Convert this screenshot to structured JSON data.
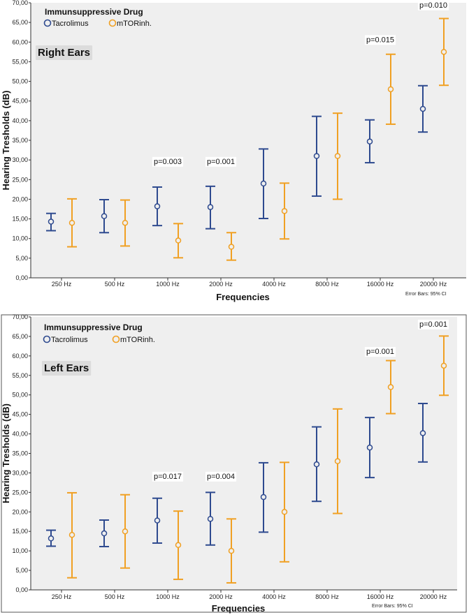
{
  "colors": {
    "tacrolimus": "#2e4a8f",
    "mtor": "#f0a023",
    "plot_bg": "#efefef"
  },
  "chart_data": [
    {
      "type": "errorbar",
      "panel_label": "Right Ears",
      "legend_title": "Immunsuppressive Drug",
      "xlabel": "Frequencies",
      "ylabel": "Hearing Tresholds (dB)",
      "ylim": [
        0,
        70
      ],
      "yticks": [
        "0,00",
        "5,00",
        "10,00",
        "15,00",
        "20,00",
        "25,00",
        "30,00",
        "35,00",
        "40,00",
        "45,00",
        "50,00",
        "55,00",
        "60,00",
        "65,00",
        "70,00"
      ],
      "grid": false,
      "legend_position": "top-left",
      "note": "Error Bars: 95% CI",
      "categories": [
        "250 Hz",
        "500 Hz",
        "1000 Hz",
        "2000 Hz",
        "4000 Hz",
        "8000 Hz",
        "16000 Hz",
        "20000 Hz"
      ],
      "series": [
        {
          "name": "Tacrolimus",
          "mean": [
            14.3,
            15.7,
            18.2,
            18.0,
            24.0,
            31.0,
            34.7,
            43.0
          ],
          "lower": [
            12.0,
            11.5,
            13.3,
            12.5,
            15.1,
            20.8,
            29.3,
            37.1
          ],
          "upper": [
            16.4,
            19.9,
            23.1,
            23.3,
            32.8,
            41.1,
            40.2,
            48.9
          ]
        },
        {
          "name": "mTORinh.",
          "mean": [
            14.0,
            14.0,
            9.5,
            7.9,
            17.0,
            31.0,
            48.0,
            57.5
          ],
          "lower": [
            7.9,
            8.1,
            5.1,
            4.5,
            9.9,
            20.0,
            39.1,
            49.0
          ],
          "upper": [
            20.1,
            19.8,
            13.8,
            11.5,
            24.1,
            41.9,
            56.9,
            66.0
          ]
        }
      ],
      "annotations": [
        {
          "category": "1000 Hz",
          "text": "p=0.003",
          "y": 29.0
        },
        {
          "category": "2000 Hz",
          "text": "p=0.001",
          "y": 29.0
        },
        {
          "category": "16000 Hz",
          "text": "p=0.015",
          "y": 60.0
        },
        {
          "category": "20000 Hz",
          "text": "p=0.010",
          "y": 68.8
        }
      ]
    },
    {
      "type": "errorbar",
      "panel_label": "Left Ears",
      "legend_title": "Immunsuppressive Drug",
      "xlabel": "Frequencies",
      "ylabel": "Hearing Tresholds (dB)",
      "ylim": [
        0,
        70
      ],
      "yticks": [
        "0,00",
        "5,00",
        "10,00",
        "15,00",
        "20,00",
        "25,00",
        "30,00",
        "35,00",
        "40,00",
        "45,00",
        "50,00",
        "55,00",
        "60,00",
        "65,00",
        "70,00"
      ],
      "grid": false,
      "legend_position": "top-left",
      "note": "Error Bars: 95% CI",
      "categories": [
        "250 Hz",
        "500 Hz",
        "1000 Hz",
        "2000 Hz",
        "4000 Hz",
        "8000 Hz",
        "16000 Hz",
        "20000 Hz"
      ],
      "series": [
        {
          "name": "Tacrolimus",
          "mean": [
            13.2,
            14.5,
            17.8,
            18.2,
            23.8,
            32.2,
            36.5,
            40.2
          ],
          "lower": [
            11.2,
            11.1,
            12.0,
            11.5,
            14.8,
            22.7,
            28.8,
            32.8
          ],
          "upper": [
            15.3,
            17.9,
            23.5,
            25.0,
            32.6,
            41.8,
            44.2,
            47.8
          ]
        },
        {
          "name": "mTORinh.",
          "mean": [
            14.1,
            15.0,
            11.5,
            10.0,
            20.0,
            33.0,
            52.0,
            57.5
          ],
          "lower": [
            3.1,
            5.6,
            2.7,
            1.8,
            7.2,
            19.6,
            45.2,
            49.9
          ],
          "upper": [
            24.9,
            24.4,
            20.2,
            18.2,
            32.7,
            46.4,
            58.8,
            65.1
          ]
        }
      ],
      "annotations": [
        {
          "category": "1000 Hz",
          "text": "p=0.017",
          "y": 28.5
        },
        {
          "category": "2000 Hz",
          "text": "p=0.004",
          "y": 28.5
        },
        {
          "category": "16000 Hz",
          "text": "p=0.001",
          "y": 60.5
        },
        {
          "category": "20000 Hz",
          "text": "p=0.001",
          "y": 67.5
        }
      ]
    }
  ]
}
